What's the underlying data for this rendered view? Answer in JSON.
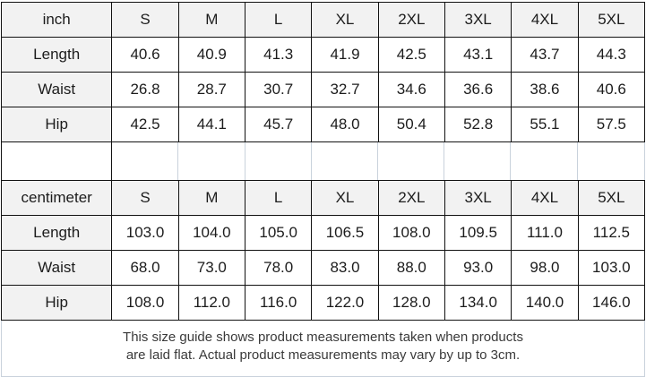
{
  "size_guide": {
    "tables": [
      {
        "unit_label": "inch",
        "columns": [
          "S",
          "M",
          "L",
          "XL",
          "2XL",
          "3XL",
          "4XL",
          "5XL"
        ],
        "rows": [
          {
            "label": "Length",
            "values": [
              "40.6",
              "40.9",
              "41.3",
              "41.9",
              "42.5",
              "43.1",
              "43.7",
              "44.3"
            ]
          },
          {
            "label": "Waist",
            "values": [
              "26.8",
              "28.7",
              "30.7",
              "32.7",
              "34.6",
              "36.6",
              "38.6",
              "40.6"
            ]
          },
          {
            "label": "Hip",
            "values": [
              "42.5",
              "44.1",
              "45.7",
              "48.0",
              "50.4",
              "52.8",
              "55.1",
              "57.5"
            ]
          }
        ]
      },
      {
        "unit_label": "centimeter",
        "columns": [
          "S",
          "M",
          "L",
          "XL",
          "2XL",
          "3XL",
          "4XL",
          "5XL"
        ],
        "rows": [
          {
            "label": "Length",
            "values": [
              "103.0",
              "104.0",
              "105.0",
              "106.5",
              "108.0",
              "109.5",
              "111.0",
              "112.5"
            ]
          },
          {
            "label": "Waist",
            "values": [
              "68.0",
              "73.0",
              "78.0",
              "83.0",
              "88.0",
              "93.0",
              "98.0",
              "103.0"
            ]
          },
          {
            "label": "Hip",
            "values": [
              "108.0",
              "112.0",
              "116.0",
              "122.0",
              "128.0",
              "134.0",
              "140.0",
              "146.0"
            ]
          }
        ]
      }
    ],
    "footer_lines": [
      "This size guide shows product measurements taken when products",
      "are laid flat. Actual product measurements may vary by up to 3cm."
    ],
    "colors": {
      "header_bg": "#f2f2f2",
      "table_border": "#121212",
      "light_border": "#c9d2dc",
      "cell_text": "#1c1c1c",
      "footer_text": "#3a3a3a"
    }
  }
}
